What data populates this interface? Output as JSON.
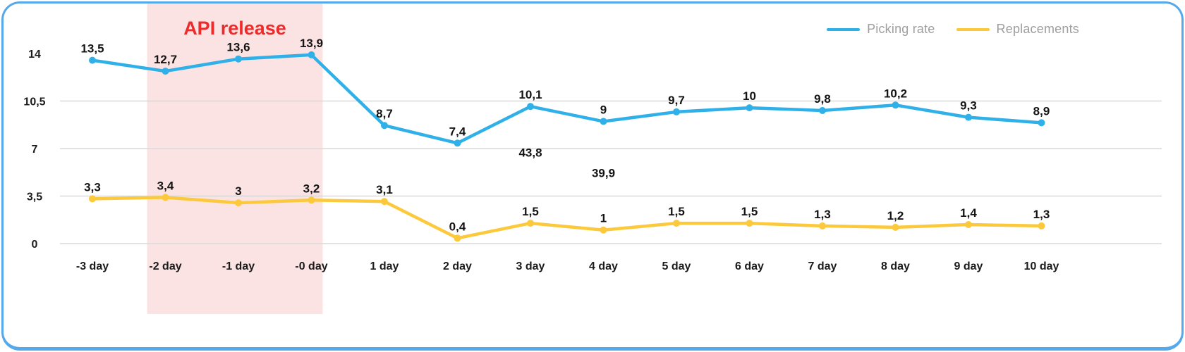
{
  "chart_data": {
    "type": "line",
    "categories": [
      "-3 day",
      "-2 day",
      "-1 day",
      "-0 day",
      "1 day",
      "2 day",
      "3 day",
      "4 day",
      "5 day",
      "6 day",
      "7 day",
      "8 day",
      "9 day",
      "10 day"
    ],
    "ylim": [
      0,
      14
    ],
    "yticks": [
      {
        "value": 0,
        "label": "0"
      },
      {
        "value": 3.5,
        "label": "3,5"
      },
      {
        "value": 7,
        "label": "7"
      },
      {
        "value": 10.5,
        "label": "10,5"
      },
      {
        "value": 14,
        "label": "14"
      }
    ],
    "gridline_values": [
      0,
      3.5,
      7,
      10.5
    ],
    "legend_position": "top-right",
    "series": [
      {
        "name": "Picking rate",
        "color": "#2fb0e8",
        "values": [
          13.5,
          12.7,
          13.6,
          13.9,
          8.7,
          7.4,
          10.1,
          9,
          9.7,
          10,
          9.8,
          10.2,
          9.3,
          8.9
        ],
        "labels": [
          "13,5",
          "12,7",
          "13,6",
          "13,9",
          "8,7",
          "7,4",
          "10,1",
          "9",
          "9,7",
          "10",
          "9,8",
          "10,2",
          "9,3",
          "8,9"
        ]
      },
      {
        "name": "Replacements",
        "color": "#fcc93c",
        "values": [
          3.3,
          3.4,
          3,
          3.2,
          3.1,
          0.4,
          1.5,
          1,
          1.5,
          1.5,
          1.3,
          1.2,
          1.4,
          1.3
        ],
        "labels": [
          "3,3",
          "3,4",
          "3",
          "3,2",
          "3,1",
          "0,4",
          "1,5",
          "1",
          "1,5",
          "1,5",
          "1,3",
          "1,2",
          "1,4",
          "1,3"
        ]
      }
    ],
    "band": {
      "label": "API release",
      "label_color": "#ee2b2b",
      "fill": "#fbe3e3",
      "from_category": "-2 day",
      "to_category": "-0 day"
    },
    "extra_labels": [
      {
        "text": "43,8",
        "category": "3 day",
        "value": 6.4
      },
      {
        "text": "39,9",
        "category": "4 day",
        "value": 4.9
      }
    ]
  }
}
